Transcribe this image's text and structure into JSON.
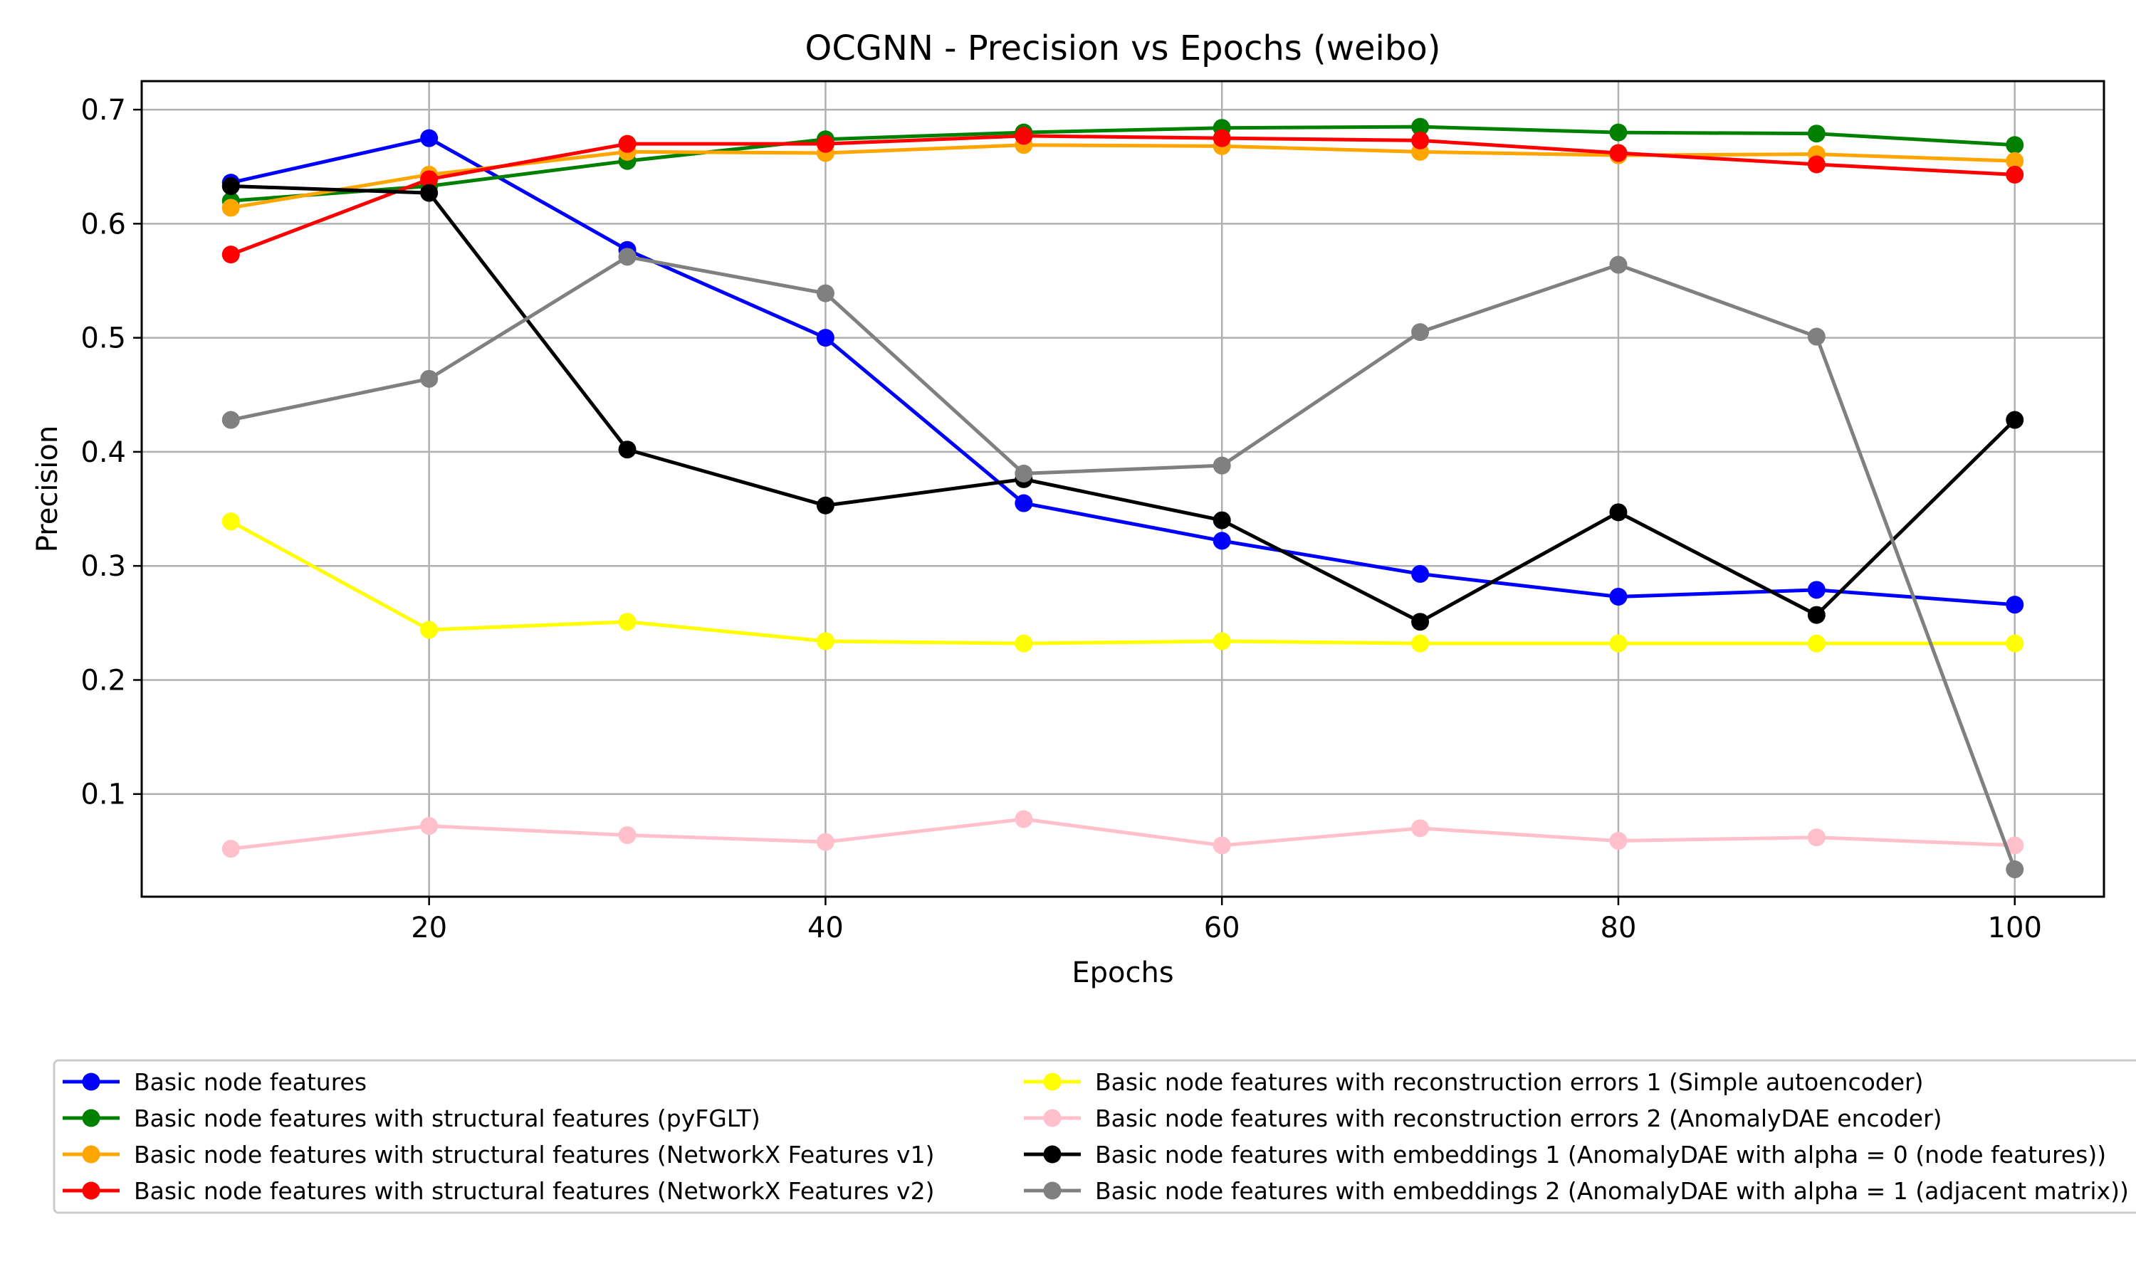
{
  "chart_data": {
    "type": "line",
    "title": "OCGNN - Precision vs Epochs (weibo)",
    "xlabel": "Epochs",
    "ylabel": "Precision",
    "x": [
      10,
      20,
      30,
      40,
      50,
      60,
      70,
      80,
      90,
      100
    ],
    "xlim": [
      5.5,
      104.5
    ],
    "ylim": [
      0.01,
      0.725
    ],
    "xticks": [
      20,
      40,
      60,
      80,
      100
    ],
    "yticks": [
      0.1,
      0.2,
      0.3,
      0.4,
      0.5,
      0.6,
      0.7
    ],
    "grid": true,
    "legend_position": "below",
    "series": [
      {
        "name": "Basic node features",
        "color": "#0000ff",
        "values": [
          0.636,
          0.675,
          0.577,
          0.5,
          0.355,
          0.322,
          0.293,
          0.273,
          0.279,
          0.266
        ]
      },
      {
        "name": "Basic node features with structural features (pyFGLT)",
        "color": "#008000",
        "values": [
          0.62,
          0.633,
          0.655,
          0.674,
          0.68,
          0.684,
          0.685,
          0.68,
          0.679,
          0.669
        ]
      },
      {
        "name": "Basic node features with structural features (NetworkX Features v1)",
        "color": "#ffa500",
        "values": [
          0.614,
          0.643,
          0.663,
          0.662,
          0.669,
          0.668,
          0.663,
          0.66,
          0.661,
          0.655
        ]
      },
      {
        "name": "Basic node features with structural features (NetworkX Features v2)",
        "color": "#ff0000",
        "values": [
          0.573,
          0.639,
          0.67,
          0.67,
          0.677,
          0.675,
          0.673,
          0.662,
          0.652,
          0.643
        ]
      },
      {
        "name": "Basic node features with reconstruction errors 1 (Simple autoencoder)",
        "color": "#ffff00",
        "values": [
          0.339,
          0.244,
          0.251,
          0.234,
          0.232,
          0.234,
          0.232,
          0.232,
          0.232,
          0.232
        ]
      },
      {
        "name": "Basic node features with reconstruction errors 2 (AnomalyDAE encoder)",
        "color": "#ffc0cb",
        "values": [
          0.052,
          0.072,
          0.064,
          0.058,
          0.078,
          0.055,
          0.07,
          0.059,
          0.062,
          0.055
        ]
      },
      {
        "name": "Basic node features with embeddings 1 (AnomalyDAE with alpha = 0 (node features))",
        "color": "#000000",
        "values": [
          0.633,
          0.627,
          0.402,
          0.353,
          0.376,
          0.34,
          0.251,
          0.347,
          0.257,
          0.428
        ]
      },
      {
        "name": "Basic node features with embeddings 2 (AnomalyDAE with alpha = 1 (adjacent matrix))",
        "color": "#808080",
        "values": [
          0.428,
          0.464,
          0.571,
          0.539,
          0.381,
          0.388,
          0.505,
          0.564,
          0.501,
          0.034
        ]
      }
    ]
  }
}
